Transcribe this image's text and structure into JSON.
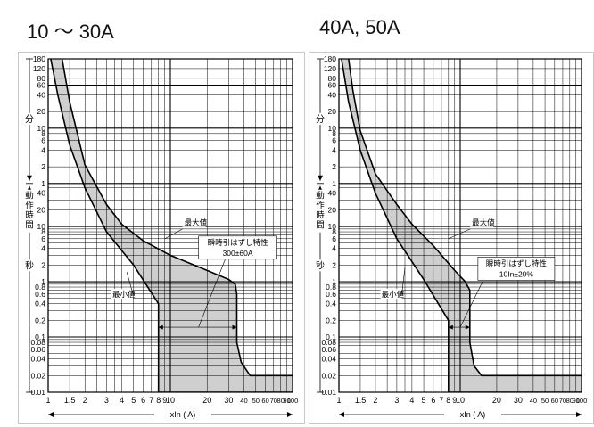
{
  "chart_data": [
    {
      "type": "area",
      "title": "10 ～ 30A",
      "xlabel": "xIn ( A)",
      "xscale": "log",
      "yscale": "log",
      "xlim": [
        1,
        100
      ],
      "x_ticks": [
        1,
        1.5,
        2,
        3,
        4,
        5,
        6,
        7,
        8,
        9,
        10,
        20,
        30,
        40,
        50,
        60,
        70,
        80,
        90,
        100
      ],
      "y_left_label": [
        "動",
        "作",
        "時",
        "間"
      ],
      "y_unit_upper": "分",
      "y_unit_lower": "秒",
      "y_ticks_minutes": [
        "180",
        "120",
        "80",
        "60",
        "40",
        "20",
        "10",
        "8",
        "6",
        "4",
        "2",
        "1"
      ],
      "y_ticks_seconds": [
        "60",
        "40",
        "20",
        "10",
        "8",
        "6",
        "4",
        "2",
        "1",
        "0.8",
        "0.6",
        "0.4",
        "0.2",
        "0.1",
        "0.08",
        "0.06",
        "0.04",
        "0.02",
        "0.01"
      ],
      "series": [
        {
          "name": "最大値",
          "x": [
            1.3,
            1.5,
            2,
            3,
            4,
            6,
            10,
            20,
            30,
            34,
            35,
            35,
            38,
            45,
            100
          ],
          "y": [
            10800,
            1800,
            130,
            25,
            11,
            5.5,
            3,
            1.6,
            1.1,
            0.9,
            0.6,
            0.08,
            0.035,
            0.02,
            0.02
          ]
        },
        {
          "name": "最小値",
          "x": [
            1.05,
            1.2,
            1.5,
            2,
            3,
            5,
            8,
            8,
            100
          ],
          "y": [
            10800,
            2400,
            300,
            50,
            8,
            2,
            0.4,
            0.01,
            0.01
          ]
        }
      ],
      "annotations": {
        "max_label": "最大値",
        "min_label": "最小値",
        "instant_label": "瞬時引はずし特性",
        "instant_value": "300±60A"
      }
    },
    {
      "type": "area",
      "title": "40A, 50A",
      "xlabel": "xIn ( A)",
      "xscale": "log",
      "yscale": "log",
      "xlim": [
        1,
        100
      ],
      "x_ticks": [
        1,
        1.5,
        2,
        3,
        4,
        5,
        6,
        7,
        8,
        9,
        10,
        20,
        30,
        40,
        50,
        60,
        70,
        80,
        90,
        100
      ],
      "y_left_label": [
        "動",
        "作",
        "時",
        "間"
      ],
      "y_unit_upper": "分",
      "y_unit_lower": "秒",
      "y_ticks_minutes": [
        "180",
        "120",
        "80",
        "60",
        "40",
        "20",
        "10",
        "8",
        "6",
        "4",
        "2",
        "1"
      ],
      "y_ticks_seconds": [
        "60",
        "40",
        "20",
        "10",
        "8",
        "6",
        "4",
        "2",
        "1",
        "0.8",
        "0.6",
        "0.4",
        "0.2",
        "0.1",
        "0.08",
        "0.06",
        "0.04",
        "0.02",
        "0.01"
      ],
      "series": [
        {
          "name": "最大値",
          "x": [
            1.2,
            1.3,
            1.5,
            2,
            3,
            4,
            6,
            9,
            11,
            12,
            12,
            13,
            15,
            100
          ],
          "y": [
            10800,
            3000,
            540,
            90,
            25,
            11,
            4.5,
            1.6,
            1,
            0.7,
            0.08,
            0.03,
            0.02,
            0.02
          ]
        },
        {
          "name": "最小値",
          "x": [
            1.05,
            1.2,
            1.5,
            2,
            3,
            5,
            8,
            8,
            100
          ],
          "y": [
            10800,
            1800,
            240,
            40,
            6,
            1.1,
            0.2,
            0.01,
            0.01
          ]
        }
      ],
      "annotations": {
        "max_label": "最大値",
        "min_label": "最小値",
        "instant_label": "瞬時引はずし特性",
        "instant_value": "10In±20%"
      }
    }
  ]
}
